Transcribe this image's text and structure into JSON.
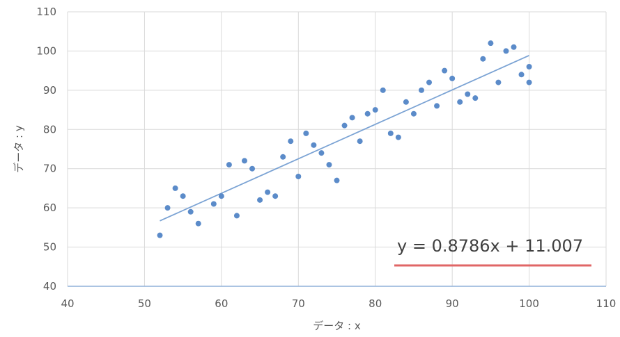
{
  "chart_data": {
    "type": "scatter",
    "title": "",
    "xlabel": "データ : x",
    "ylabel": "データ : y",
    "xlim": [
      40,
      110
    ],
    "ylim": [
      40,
      110
    ],
    "xticks": [
      40,
      50,
      60,
      70,
      80,
      90,
      100,
      110
    ],
    "yticks": [
      40,
      50,
      60,
      70,
      80,
      90,
      100,
      110
    ],
    "grid": true,
    "colors": {
      "points": "#5b8bc9",
      "trendline": "#7ba3d4",
      "grid": "#d9d9d9",
      "axis": "#8fb0d9",
      "underline": "#e06666"
    },
    "series": [
      {
        "points": [
          [
            52,
            53
          ],
          [
            53,
            60
          ],
          [
            54,
            65
          ],
          [
            55,
            63
          ],
          [
            56,
            59
          ],
          [
            57,
            56
          ],
          [
            59,
            61
          ],
          [
            60,
            63
          ],
          [
            61,
            71
          ],
          [
            62,
            58
          ],
          [
            63,
            72
          ],
          [
            64,
            70
          ],
          [
            65,
            62
          ],
          [
            66,
            64
          ],
          [
            67,
            63
          ],
          [
            68,
            73
          ],
          [
            69,
            77
          ],
          [
            70,
            68
          ],
          [
            71,
            79
          ],
          [
            72,
            76
          ],
          [
            73,
            74
          ],
          [
            74,
            71
          ],
          [
            75,
            67
          ],
          [
            76,
            81
          ],
          [
            77,
            83
          ],
          [
            78,
            77
          ],
          [
            79,
            84
          ],
          [
            80,
            85
          ],
          [
            81,
            90
          ],
          [
            82,
            79
          ],
          [
            83,
            78
          ],
          [
            84,
            87
          ],
          [
            85,
            84
          ],
          [
            86,
            90
          ],
          [
            87,
            92
          ],
          [
            88,
            86
          ],
          [
            89,
            95
          ],
          [
            90,
            93
          ],
          [
            91,
            87
          ],
          [
            92,
            89
          ],
          [
            93,
            88
          ],
          [
            94,
            98
          ],
          [
            95,
            102
          ],
          [
            96,
            92
          ],
          [
            97,
            100
          ],
          [
            98,
            101
          ],
          [
            99,
            94
          ],
          [
            100,
            96
          ],
          [
            100,
            92
          ]
        ]
      }
    ],
    "trendline": {
      "slope": 0.8786,
      "intercept": 11.007,
      "x_range": [
        52,
        100
      ],
      "equation": "y = 0.8786x + 11.007"
    }
  }
}
